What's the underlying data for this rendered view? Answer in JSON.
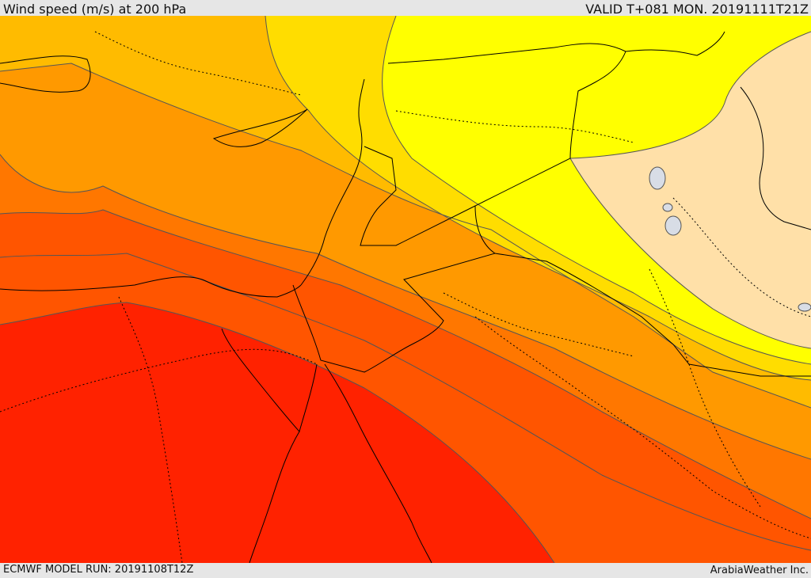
{
  "header": {
    "title": "Wind speed (m/s) at 200 hPa",
    "valid": "VALID T+081 MON. 20191111T21Z"
  },
  "footer": {
    "model_run": "ECMWF MODEL RUN: 20191108T12Z",
    "credit": "ArabiaWeather Inc."
  },
  "map": {
    "variable": "wind speed",
    "units": "m/s",
    "level_hpa": 200,
    "region": "Eastern Mediterranean / Levant / Egypt / Iraq",
    "colors": {
      "band_lowest": "#ffe0a8",
      "band_low": "#ffff00",
      "band_mid_low": "#ffdd00",
      "band_mid": "#ffbb00",
      "band_mid_high": "#ff9900",
      "band_high": "#ff7700",
      "band_higher": "#ff5500",
      "band_highest": "#ff2200",
      "contour": "#555555",
      "coast": "#000000",
      "lakes": "#d8dde6"
    }
  }
}
